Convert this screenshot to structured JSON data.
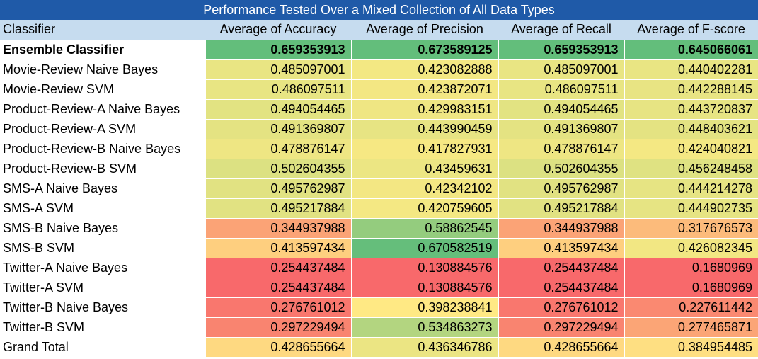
{
  "chart_data": {
    "type": "table",
    "title": "Performance Tested Over a Mixed Collection of All Data Types",
    "columns": [
      "Classifier",
      "Average of  Accuracy",
      "Average of  Precision",
      "Average of  Recall",
      "Average of  F-score"
    ],
    "rows": [
      {
        "label": "Ensemble Classifier",
        "bold": true,
        "values": [
          "0.659353913",
          "0.673589125",
          "0.659353913",
          "0.645066061"
        ]
      },
      {
        "label": "Movie-Review Naive Bayes",
        "values": [
          "0.485097001",
          "0.423082888",
          "0.485097001",
          "0.440402281"
        ]
      },
      {
        "label": "Movie-Review SVM",
        "values": [
          "0.486097511",
          "0.423872071",
          "0.486097511",
          "0.442288145"
        ]
      },
      {
        "label": "Product-Review-A Naive Bayes",
        "values": [
          "0.494054465",
          "0.429983151",
          "0.494054465",
          "0.443720837"
        ]
      },
      {
        "label": "Product-Review-A SVM",
        "values": [
          "0.491369807",
          "0.443990459",
          "0.491369807",
          "0.448403621"
        ]
      },
      {
        "label": "Product-Review-B Naive Bayes",
        "values": [
          "0.478876147",
          "0.417827931",
          "0.478876147",
          "0.424040821"
        ]
      },
      {
        "label": "Product-Review-B SVM",
        "values": [
          "0.502604355",
          "0.43459631",
          "0.502604355",
          "0.456248458"
        ]
      },
      {
        "label": "SMS-A Naive Bayes",
        "values": [
          "0.495762987",
          "0.42342102",
          "0.495762987",
          "0.444214278"
        ]
      },
      {
        "label": "SMS-A SVM",
        "values": [
          "0.495217884",
          "0.420759605",
          "0.495217884",
          "0.444902735"
        ]
      },
      {
        "label": "SMS-B Naive Bayes",
        "values": [
          "0.344937988",
          "0.58862545",
          "0.344937988",
          "0.317676573"
        ]
      },
      {
        "label": "SMS-B SVM",
        "values": [
          "0.413597434",
          "0.670582519",
          "0.413597434",
          "0.426082345"
        ]
      },
      {
        "label": "Twitter-A Naive Bayes",
        "values": [
          "0.254437484",
          "0.130884576",
          "0.254437484",
          "0.1680969"
        ]
      },
      {
        "label": "Twitter-A SVM",
        "values": [
          "0.254437484",
          "0.130884576",
          "0.254437484",
          "0.1680969"
        ]
      },
      {
        "label": "Twitter-B Naive Bayes",
        "values": [
          "0.276761012",
          "0.398238841",
          "0.276761012",
          "0.227611442"
        ]
      },
      {
        "label": "Twitter-B SVM",
        "values": [
          "0.297229494",
          "0.534863273",
          "0.297229494",
          "0.277465871"
        ]
      },
      {
        "label": "Grand Total",
        "values": [
          "0.428655664",
          "0.436346786",
          "0.428655664",
          "0.384954485"
        ]
      }
    ],
    "color_scale": {
      "low": "#f8696b",
      "mid": "#ffeb84",
      "high": "#63be7b"
    }
  }
}
